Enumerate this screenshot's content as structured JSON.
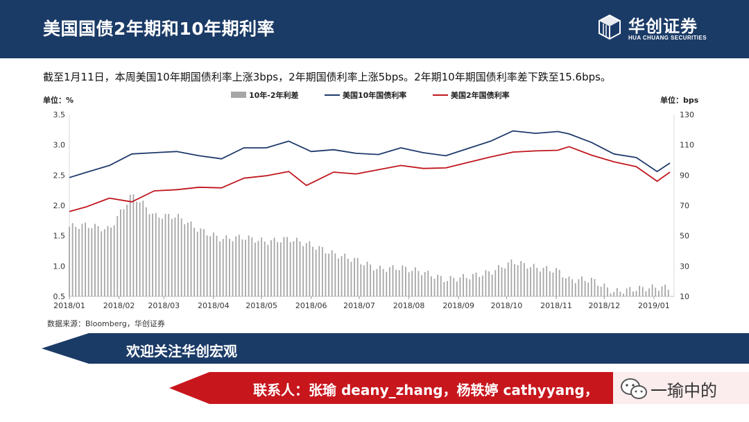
{
  "header": {
    "title": "美国国债2年期和10年期利率"
  },
  "logo": {
    "cn": "华创证券",
    "en": "HUA CHUANG SECURITIES"
  },
  "summary": "截至1月11日，本周美国10年期国债利率上涨3bps，2年期国债利率上涨5bps。2年期10年期国债利率差下跌至15.6bps。",
  "source": "数据来源：Bloomberg，华创证券",
  "banner1": {
    "text": "欢迎关注华创宏观"
  },
  "banner2": {
    "text": "联系人：张瑜 deany_zhang，杨轶婷 cathyyang，"
  },
  "wechat": {
    "icon": "wechat-icon",
    "name": "一瑜中的"
  },
  "colors": {
    "header_bg": "#1b3b67",
    "banner_red": "#c8161d",
    "spread_bar": "#a6a6a6",
    "us10y": "#1f3a6b",
    "us2y": "#c0161c"
  },
  "chart_data": {
    "type": "bar+line",
    "left_unit": "单位：%",
    "right_unit": "单位：bps",
    "legend": [
      "10年-2年利差",
      "美国10年国债利率",
      "美国2年国债利率"
    ],
    "legend_position": "top-center",
    "grid": false,
    "x_ticks": [
      "2018/01",
      "2018/02",
      "2018/03",
      "2018/04",
      "2018/05",
      "2018/06",
      "2018/07",
      "2018/08",
      "2018/09",
      "2018/10",
      "2018/11",
      "2018/12",
      "2019/01"
    ],
    "y_left": {
      "range": [
        0.5,
        3.5
      ],
      "ticks": [
        "3.5",
        "3.0",
        "2.5",
        "2.0",
        "1.5",
        "1.0",
        "0.5"
      ]
    },
    "y_right": {
      "range": [
        10,
        130
      ],
      "ticks": [
        "130",
        "110",
        "90",
        "70",
        "50",
        "30",
        "10"
      ]
    },
    "x_start": "2018-01-01",
    "x_end": "2019-01-11",
    "series": [
      {
        "name": "美国10年国债利率",
        "axis": "left",
        "type": "line",
        "points": [
          [
            "2018-01-01",
            2.46
          ],
          [
            "2018-01-12",
            2.55
          ],
          [
            "2018-01-26",
            2.66
          ],
          [
            "2018-02-09",
            2.85
          ],
          [
            "2018-02-23",
            2.87
          ],
          [
            "2018-03-09",
            2.89
          ],
          [
            "2018-03-23",
            2.82
          ],
          [
            "2018-04-06",
            2.77
          ],
          [
            "2018-04-20",
            2.95
          ],
          [
            "2018-05-04",
            2.95
          ],
          [
            "2018-05-18",
            3.06
          ],
          [
            "2018-06-01",
            2.89
          ],
          [
            "2018-06-15",
            2.92
          ],
          [
            "2018-06-29",
            2.86
          ],
          [
            "2018-07-13",
            2.84
          ],
          [
            "2018-07-27",
            2.95
          ],
          [
            "2018-08-10",
            2.87
          ],
          [
            "2018-08-24",
            2.82
          ],
          [
            "2018-09-07",
            2.94
          ],
          [
            "2018-09-21",
            3.06
          ],
          [
            "2018-10-05",
            3.23
          ],
          [
            "2018-10-19",
            3.19
          ],
          [
            "2018-11-02",
            3.22
          ],
          [
            "2018-11-09",
            3.18
          ],
          [
            "2018-11-23",
            3.04
          ],
          [
            "2018-12-07",
            2.85
          ],
          [
            "2018-12-21",
            2.79
          ],
          [
            "2019-01-03",
            2.56
          ],
          [
            "2019-01-11",
            2.7
          ]
        ]
      },
      {
        "name": "美国2年国债利率",
        "axis": "left",
        "type": "line",
        "points": [
          [
            "2018-01-01",
            1.9
          ],
          [
            "2018-01-12",
            1.98
          ],
          [
            "2018-01-26",
            2.12
          ],
          [
            "2018-02-09",
            2.06
          ],
          [
            "2018-02-23",
            2.24
          ],
          [
            "2018-03-09",
            2.26
          ],
          [
            "2018-03-23",
            2.3
          ],
          [
            "2018-04-06",
            2.29
          ],
          [
            "2018-04-20",
            2.45
          ],
          [
            "2018-05-04",
            2.49
          ],
          [
            "2018-05-18",
            2.56
          ],
          [
            "2018-05-29",
            2.33
          ],
          [
            "2018-06-15",
            2.55
          ],
          [
            "2018-06-29",
            2.52
          ],
          [
            "2018-07-13",
            2.59
          ],
          [
            "2018-07-27",
            2.66
          ],
          [
            "2018-08-10",
            2.61
          ],
          [
            "2018-08-24",
            2.62
          ],
          [
            "2018-09-07",
            2.71
          ],
          [
            "2018-09-21",
            2.8
          ],
          [
            "2018-10-05",
            2.88
          ],
          [
            "2018-10-19",
            2.9
          ],
          [
            "2018-11-02",
            2.91
          ],
          [
            "2018-11-09",
            2.97
          ],
          [
            "2018-11-23",
            2.83
          ],
          [
            "2018-12-07",
            2.72
          ],
          [
            "2018-12-21",
            2.64
          ],
          [
            "2019-01-03",
            2.4
          ],
          [
            "2019-01-11",
            2.55
          ]
        ]
      },
      {
        "name": "10年-2年利差",
        "axis": "right",
        "type": "bar",
        "points": [
          [
            "2018-01-01",
            56
          ],
          [
            "2018-01-12",
            57
          ],
          [
            "2018-01-26",
            54
          ],
          [
            "2018-02-09",
            77
          ],
          [
            "2018-02-16",
            71
          ],
          [
            "2018-02-23",
            63
          ],
          [
            "2018-03-09",
            63
          ],
          [
            "2018-03-23",
            54
          ],
          [
            "2018-04-06",
            48
          ],
          [
            "2018-04-20",
            49
          ],
          [
            "2018-05-04",
            46
          ],
          [
            "2018-05-18",
            48
          ],
          [
            "2018-06-01",
            44
          ],
          [
            "2018-06-15",
            38
          ],
          [
            "2018-06-29",
            34
          ],
          [
            "2018-07-13",
            28
          ],
          [
            "2018-07-27",
            29
          ],
          [
            "2018-08-10",
            26
          ],
          [
            "2018-08-24",
            21
          ],
          [
            "2018-09-07",
            23
          ],
          [
            "2018-09-21",
            26
          ],
          [
            "2018-10-05",
            33
          ],
          [
            "2018-10-19",
            29
          ],
          [
            "2018-11-02",
            27
          ],
          [
            "2018-11-09",
            21
          ],
          [
            "2018-11-23",
            21
          ],
          [
            "2018-12-07",
            13
          ],
          [
            "2018-12-21",
            15
          ],
          [
            "2019-01-03",
            16
          ],
          [
            "2019-01-11",
            15.6
          ]
        ]
      }
    ]
  }
}
